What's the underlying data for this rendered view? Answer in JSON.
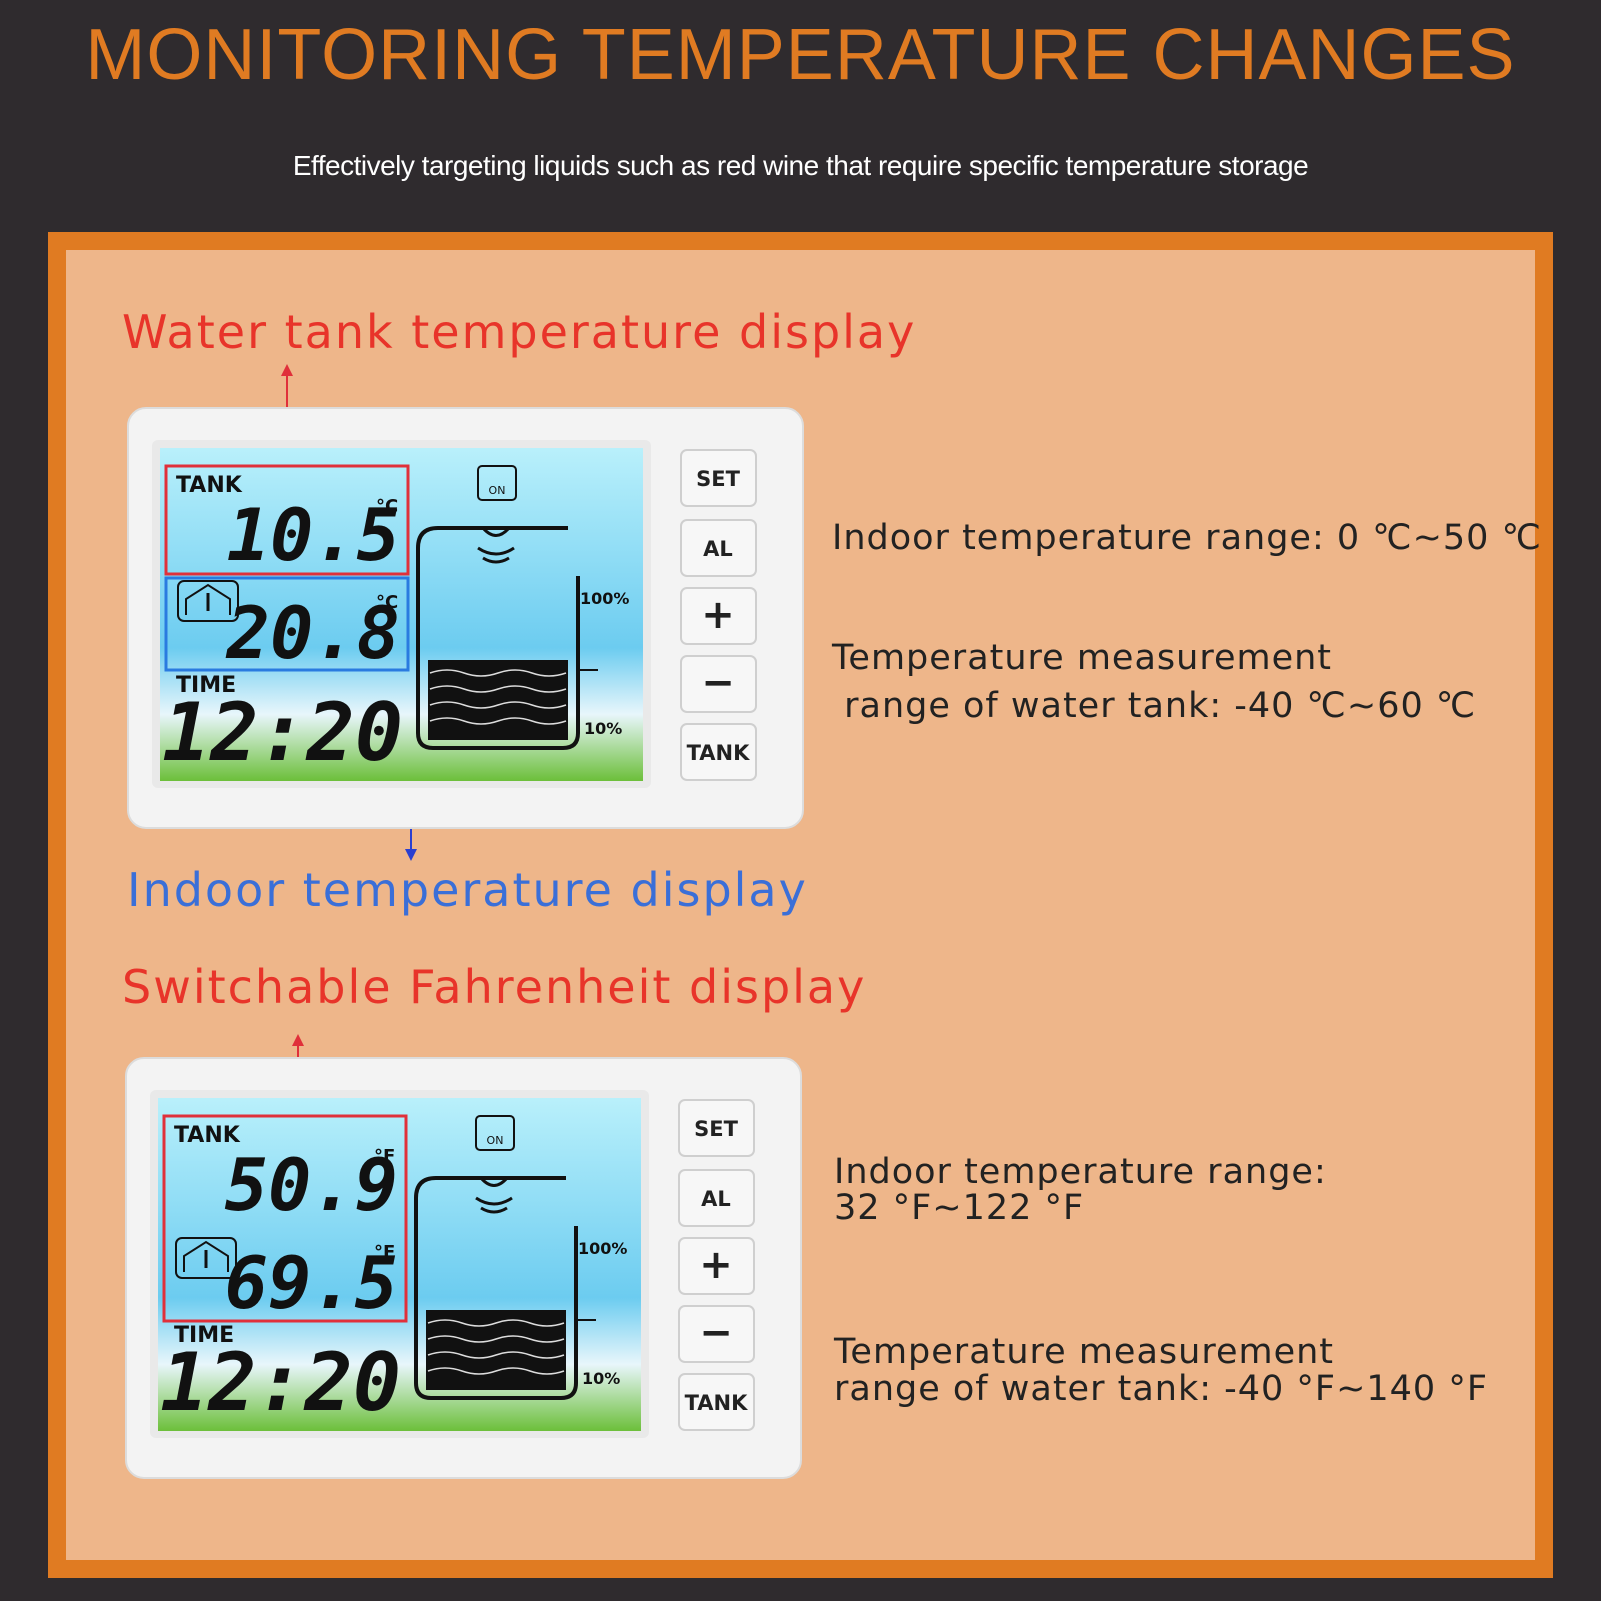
{
  "header": {
    "title": "MONITORING TEMPERATURE CHANGES",
    "subtitle": "Effectively targeting liquids such as red wine that require specific temperature storage"
  },
  "sections": [
    {
      "heading": "Water tank temperature display",
      "caption": "Indoor temperature display",
      "device": {
        "tank_label": "TANK",
        "tank_temp": "10.5",
        "tank_unit": "°C",
        "indoor_temp": "20.8",
        "indoor_unit": "°C",
        "time_label": "TIME",
        "time": "12:20",
        "icon_label": "ON",
        "level_high": "100%",
        "level_low": "10%",
        "buttons": [
          "SET",
          "AL",
          "+",
          "−",
          "TANK"
        ]
      },
      "notes": [
        "Indoor temperature range: 0 ℃~50 ℃",
        "Temperature measurement",
        " range of water tank: -40 ℃~60 ℃"
      ]
    },
    {
      "heading": "Switchable Fahrenheit display",
      "device": {
        "tank_label": "TANK",
        "tank_temp": "50.9",
        "tank_unit": "°F",
        "indoor_temp": "69.5",
        "indoor_unit": "°F",
        "time_label": "TIME",
        "time": "12:20",
        "icon_label": "ON",
        "level_high": "100%",
        "level_low": "10%",
        "buttons": [
          "SET",
          "AL",
          "+",
          "−",
          "TANK"
        ]
      },
      "notes": [
        "Indoor temperature range:",
        "32 °F~122 °F",
        "Temperature measurement",
        "range of water tank: -40 °F~140 °F"
      ]
    }
  ]
}
